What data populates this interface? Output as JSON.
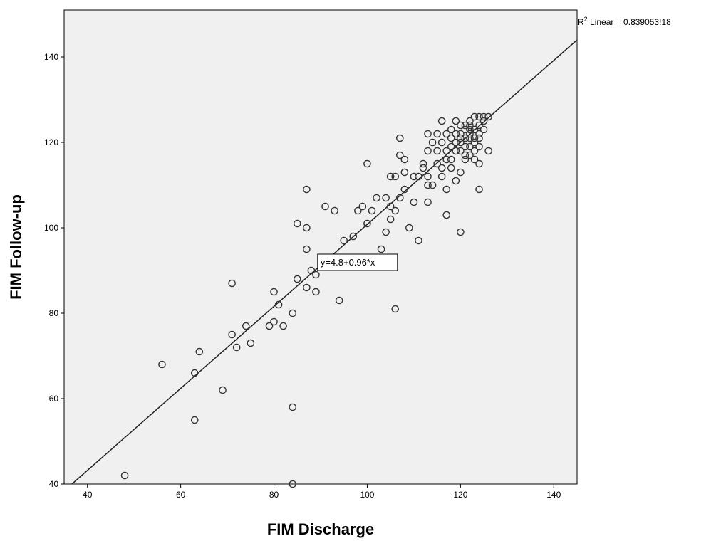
{
  "chart_data": {
    "type": "scatter",
    "xlabel": "FIM Discharge",
    "ylabel": "FIM Follow-up",
    "xlim": [
      35,
      145
    ],
    "ylim": [
      40,
      151
    ],
    "x_ticks": [
      40,
      60,
      80,
      100,
      120,
      140
    ],
    "y_ticks": [
      40,
      60,
      80,
      100,
      120,
      140
    ],
    "grid": false,
    "background": "#f0f0f0",
    "marker_color": "#333333",
    "fit_line": {
      "intercept": 4.8,
      "slope": 0.96,
      "label": "y=4.8+0.96*x",
      "label_at": [
        97,
        92
      ]
    },
    "r2_label": {
      "prefix": "R",
      "sup": "2",
      "text": " Linear = 0.839053!18"
    },
    "points": [
      [
        48,
        42
      ],
      [
        56,
        68
      ],
      [
        63,
        66
      ],
      [
        63,
        55
      ],
      [
        64,
        71
      ],
      [
        69,
        62
      ],
      [
        71,
        87
      ],
      [
        71,
        75
      ],
      [
        72,
        72
      ],
      [
        74,
        77
      ],
      [
        75,
        73
      ],
      [
        79,
        77
      ],
      [
        80,
        85
      ],
      [
        80,
        78
      ],
      [
        81,
        82
      ],
      [
        82,
        77
      ],
      [
        84,
        80
      ],
      [
        84,
        58
      ],
      [
        84,
        40
      ],
      [
        85,
        101
      ],
      [
        85,
        88
      ],
      [
        87,
        109
      ],
      [
        87,
        100
      ],
      [
        87,
        95
      ],
      [
        87,
        86
      ],
      [
        88,
        90
      ],
      [
        89,
        89
      ],
      [
        89,
        85
      ],
      [
        91,
        105
      ],
      [
        93,
        104
      ],
      [
        94,
        83
      ],
      [
        95,
        97
      ],
      [
        97,
        98
      ],
      [
        98,
        104
      ],
      [
        99,
        105
      ],
      [
        100,
        115
      ],
      [
        100,
        101
      ],
      [
        101,
        104
      ],
      [
        102,
        107
      ],
      [
        103,
        95
      ],
      [
        104,
        107
      ],
      [
        104,
        99
      ],
      [
        105,
        102
      ],
      [
        105,
        105
      ],
      [
        105,
        112
      ],
      [
        106,
        104
      ],
      [
        106,
        81
      ],
      [
        106,
        112
      ],
      [
        107,
        121
      ],
      [
        107,
        117
      ],
      [
        107,
        107
      ],
      [
        108,
        116
      ],
      [
        108,
        109
      ],
      [
        108,
        113
      ],
      [
        109,
        100
      ],
      [
        110,
        112
      ],
      [
        110,
        106
      ],
      [
        111,
        112
      ],
      [
        111,
        97
      ],
      [
        112,
        114
      ],
      [
        112,
        115
      ],
      [
        113,
        112
      ],
      [
        113,
        106
      ],
      [
        113,
        110
      ],
      [
        113,
        118
      ],
      [
        113,
        122
      ],
      [
        114,
        110
      ],
      [
        114,
        120
      ],
      [
        115,
        115
      ],
      [
        115,
        118
      ],
      [
        115,
        122
      ],
      [
        116,
        125
      ],
      [
        116,
        114
      ],
      [
        116,
        120
      ],
      [
        116,
        112
      ],
      [
        117,
        122
      ],
      [
        117,
        116
      ],
      [
        117,
        103
      ],
      [
        117,
        109
      ],
      [
        118,
        114
      ],
      [
        118,
        121
      ],
      [
        118,
        119
      ],
      [
        118,
        116
      ],
      [
        119,
        111
      ],
      [
        119,
        122
      ],
      [
        119,
        120
      ],
      [
        119,
        125
      ],
      [
        119,
        118
      ],
      [
        120,
        113
      ],
      [
        120,
        99
      ],
      [
        120,
        120
      ],
      [
        120,
        122
      ],
      [
        120,
        124
      ],
      [
        120,
        118
      ],
      [
        121,
        124
      ],
      [
        121,
        119
      ],
      [
        121,
        121
      ],
      [
        121,
        123
      ],
      [
        121,
        117
      ],
      [
        122,
        121
      ],
      [
        122,
        125
      ],
      [
        122,
        119
      ],
      [
        122,
        122
      ],
      [
        122,
        117
      ],
      [
        123,
        118
      ],
      [
        123,
        116
      ],
      [
        123,
        120
      ],
      [
        123,
        123
      ],
      [
        124,
        124
      ],
      [
        124,
        115
      ],
      [
        124,
        109
      ],
      [
        124,
        126
      ],
      [
        124,
        122
      ],
      [
        124,
        119
      ],
      [
        124,
        121
      ],
      [
        125,
        126
      ],
      [
        125,
        125
      ],
      [
        126,
        126
      ],
      [
        126,
        118
      ],
      [
        125,
        123
      ],
      [
        123,
        126
      ],
      [
        122,
        124
      ],
      [
        120,
        121
      ],
      [
        121,
        116
      ],
      [
        118,
        123
      ],
      [
        117,
        118
      ],
      [
        123,
        121
      ],
      [
        122,
        123
      ]
    ]
  }
}
